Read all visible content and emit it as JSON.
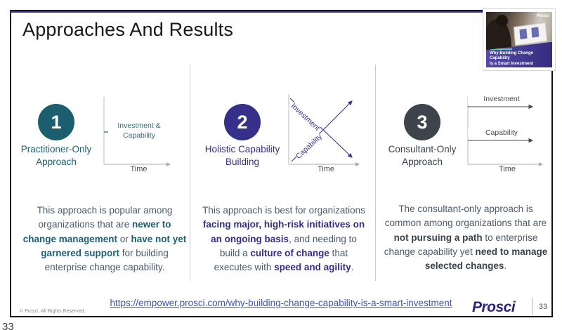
{
  "slide": {
    "title": "Approaches And Results"
  },
  "colors": {
    "accent_teal": "#1B5F6E",
    "accent_purple": "#37308A",
    "accent_slate": "#3D444C",
    "link_blue": "#3A57B5",
    "logo_indigo": "#2B2382",
    "frame_accent": "#39328C"
  },
  "thumbnail": {
    "brand": "Prosci",
    "title_lines": [
      "Why Building Change Capability",
      "Is a Smart Investment"
    ]
  },
  "columns": [
    {
      "number": "1",
      "label_lines": [
        "Practitioner-Only",
        "Approach"
      ],
      "chart": {
        "type": "line",
        "x_label": "Time",
        "label_lines": [
          "Investment &",
          "Capability"
        ],
        "series": [
          {
            "name": "Investment & Capability",
            "trend": "flat"
          }
        ]
      },
      "paragraph": [
        {
          "t": "This approach is popular among organizations that are "
        },
        {
          "t": "newer to change management",
          "b": true
        },
        {
          "t": " or "
        },
        {
          "t": "have not yet garnered support",
          "b": true
        },
        {
          "t": " for building enterprise change capability."
        }
      ]
    },
    {
      "number": "2",
      "label_lines": [
        "Holistic Capability",
        "Building"
      ],
      "chart": {
        "type": "line",
        "x_label": "Time",
        "series": [
          {
            "name": "Investment",
            "trend": "decreasing"
          },
          {
            "name": "Capability",
            "trend": "increasing"
          }
        ]
      },
      "paragraph": [
        {
          "t": "This approach is best for organizations "
        },
        {
          "t": "facing major, high-risk initiatives on an ongoing basis",
          "b": true
        },
        {
          "t": ", and needing to build a "
        },
        {
          "t": "culture of change",
          "b": true
        },
        {
          "t": " that executes with "
        },
        {
          "t": "speed and agility",
          "b": true
        },
        {
          "t": "."
        }
      ]
    },
    {
      "number": "3",
      "label_lines": [
        "Consultant-Only",
        "Approach"
      ],
      "chart": {
        "type": "line",
        "x_label": "Time",
        "series": [
          {
            "name": "Investment",
            "trend": "flat",
            "level": "high"
          },
          {
            "name": "Capability",
            "trend": "flat",
            "level": "middle"
          }
        ]
      },
      "paragraph": [
        {
          "t": "The consultant-only approach is common among organizations that are "
        },
        {
          "t": "not pursuing a path",
          "b": true
        },
        {
          "t": " to enterprise change capability yet "
        },
        {
          "t": "need to manage selected changes",
          "b": true
        },
        {
          "t": "."
        }
      ]
    }
  ],
  "footer": {
    "copyright": "© Prosci. All Rights Reserved.",
    "link": "https://empower.prosci.com/why-building-change-capability-is-a-smart-investment",
    "logo": "Prosci",
    "page_number": "33"
  },
  "outside": {
    "page_number": "33"
  }
}
